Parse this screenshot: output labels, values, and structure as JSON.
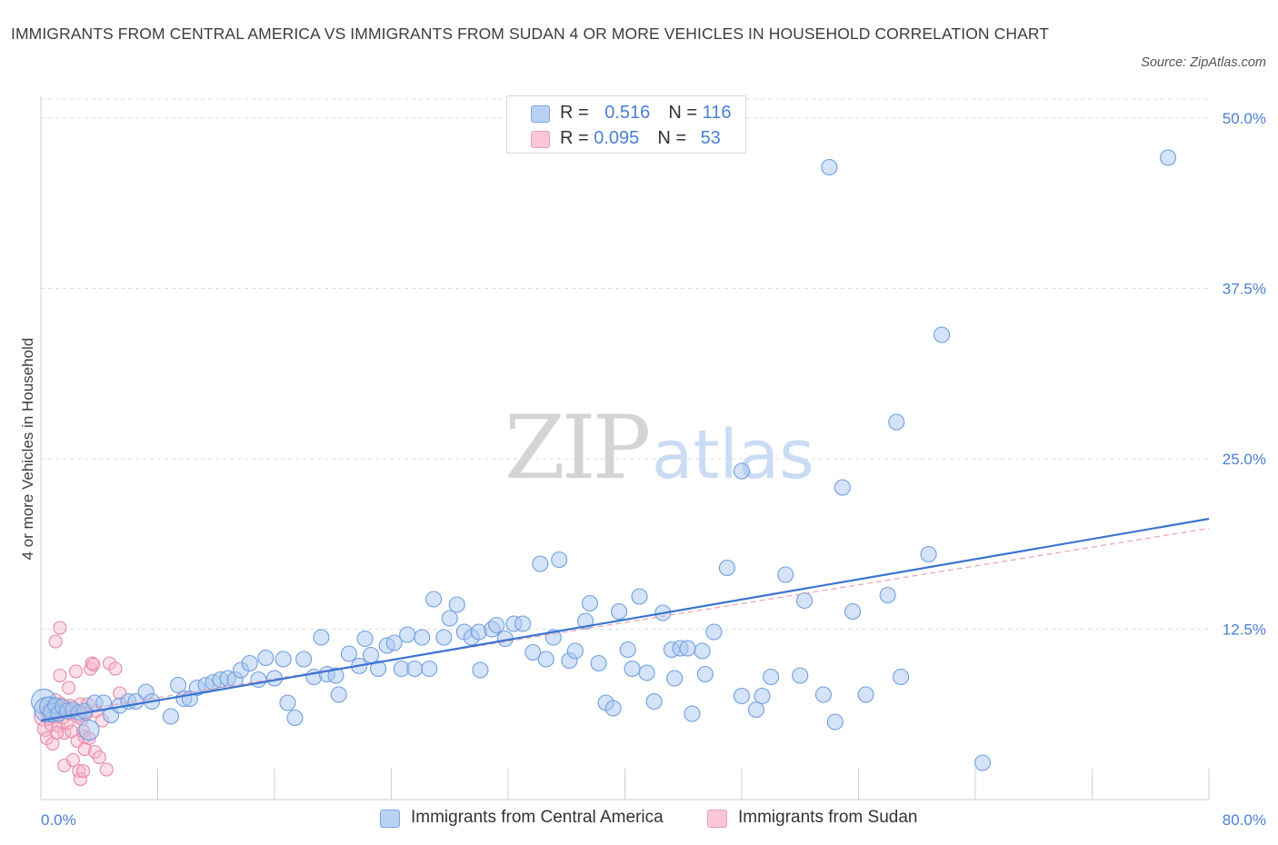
{
  "title": "IMMIGRANTS FROM CENTRAL AMERICA VS IMMIGRANTS FROM SUDAN 4 OR MORE VEHICLES IN HOUSEHOLD CORRELATION CHART",
  "source": "Source: ZipAtlas.com",
  "watermark": {
    "zip": "ZIP",
    "atlas": "atlas"
  },
  "legend": {
    "r_label": "R =",
    "n_label": "N =",
    "series1": {
      "r": "0.516",
      "n": "116"
    },
    "series2": {
      "r": "0.095",
      "n": "53"
    }
  },
  "bottom_legend": {
    "series1": "Immigrants from Central America",
    "series2": "Immigrants from Sudan"
  },
  "colors": {
    "blue_fill": "#a9c8f0",
    "blue_stroke": "#6f9fe0",
    "blue_line": "#3a74d0",
    "pink_fill": "#f6b9cb",
    "pink_stroke": "#e88aa8",
    "pink_line": "#e8a0b4",
    "axis_label": "#4a7fd4",
    "grid": "#dddddd"
  },
  "chart_data": {
    "type": "scatter",
    "title": "IMMIGRANTS FROM CENTRAL AMERICA VS IMMIGRANTS FROM SUDAN 4 OR MORE VEHICLES IN HOUSEHOLD CORRELATION CHART",
    "xlabel": "",
    "ylabel": "4 or more Vehicles in Household",
    "xlim": [
      0,
      80
    ],
    "ylim": [
      0,
      52
    ],
    "x_tick_labels": [
      {
        "value": 0,
        "label": "0.0%"
      },
      {
        "value": 80,
        "label": "80.0%"
      }
    ],
    "y_ticks": [
      {
        "value": 12.5,
        "label": "12.5%"
      },
      {
        "value": 25,
        "label": "25.0%"
      },
      {
        "value": 37.5,
        "label": "37.5%"
      },
      {
        "value": 50,
        "label": "50.0%"
      }
    ],
    "x_minor_ticks": [
      8,
      16,
      24,
      32,
      40,
      48,
      56,
      64,
      72,
      80
    ],
    "grid": true,
    "legend_position": "top-center",
    "series": [
      {
        "name": "Immigrants from Central America",
        "color": "blue",
        "R": 0.516,
        "N": 116,
        "trend": {
          "x": [
            0,
            80
          ],
          "y": [
            5.8,
            20.6
          ]
        },
        "points": [
          [
            0.2,
            7.2,
            1.6
          ],
          [
            0.4,
            6.6,
            1.6
          ],
          [
            0.6,
            6.8,
            1.3
          ],
          [
            0.8,
            6.4,
            1.2
          ],
          [
            1.0,
            6.9,
            1.0
          ],
          [
            1.2,
            6.3,
            1.0
          ],
          [
            1.5,
            6.8,
            1.0
          ],
          [
            1.8,
            6.5,
            1.0
          ],
          [
            2.2,
            6.6,
            1.0
          ],
          [
            2.6,
            6.4,
            1.0
          ],
          [
            3.0,
            6.5,
            1.0
          ],
          [
            3.3,
            5.1,
            1.3
          ],
          [
            3.7,
            7.1,
            1.0
          ],
          [
            4.3,
            7.1,
            1.0
          ],
          [
            4.8,
            6.2,
            1.0
          ],
          [
            5.4,
            6.9,
            1.0
          ],
          [
            6.0,
            7.2,
            1.0
          ],
          [
            6.5,
            7.2,
            1.0
          ],
          [
            7.2,
            7.9,
            1.0
          ],
          [
            7.6,
            7.2,
            1.0
          ],
          [
            8.9,
            6.1,
            1.0
          ],
          [
            9.4,
            8.4,
            1.0
          ],
          [
            9.8,
            7.4,
            1.0
          ],
          [
            10.2,
            7.4,
            1.0
          ],
          [
            10.7,
            8.2,
            1.0
          ],
          [
            11.3,
            8.4,
            1.0
          ],
          [
            11.8,
            8.6,
            1.0
          ],
          [
            12.3,
            8.8,
            1.0
          ],
          [
            12.8,
            8.9,
            1.0
          ],
          [
            13.3,
            8.8,
            1.0
          ],
          [
            13.7,
            9.5,
            1.0
          ],
          [
            14.3,
            10.0,
            1.0
          ],
          [
            14.9,
            8.8,
            1.0
          ],
          [
            15.4,
            10.4,
            1.0
          ],
          [
            16.0,
            8.9,
            1.0
          ],
          [
            16.6,
            10.3,
            1.0
          ],
          [
            16.9,
            7.1,
            1.0
          ],
          [
            17.4,
            6.0,
            1.0
          ],
          [
            18.0,
            10.3,
            1.0
          ],
          [
            18.7,
            9.0,
            1.0
          ],
          [
            19.2,
            11.9,
            1.0
          ],
          [
            19.6,
            9.2,
            1.0
          ],
          [
            20.2,
            9.1,
            1.0
          ],
          [
            20.4,
            7.7,
            1.0
          ],
          [
            21.1,
            10.7,
            1.0
          ],
          [
            21.8,
            9.8,
            1.0
          ],
          [
            22.2,
            11.8,
            1.0
          ],
          [
            22.6,
            10.6,
            1.0
          ],
          [
            23.1,
            9.6,
            1.0
          ],
          [
            23.7,
            11.3,
            1.0
          ],
          [
            24.2,
            11.5,
            1.0
          ],
          [
            24.7,
            9.6,
            1.0
          ],
          [
            25.1,
            12.1,
            1.0
          ],
          [
            25.6,
            9.6,
            1.0
          ],
          [
            26.1,
            11.9,
            1.0
          ],
          [
            26.6,
            9.6,
            1.0
          ],
          [
            26.9,
            14.7,
            1.0
          ],
          [
            27.6,
            11.9,
            1.0
          ],
          [
            28.0,
            13.3,
            1.0
          ],
          [
            28.5,
            14.3,
            1.0
          ],
          [
            29.0,
            12.3,
            1.0
          ],
          [
            29.5,
            11.9,
            1.0
          ],
          [
            30.0,
            12.3,
            1.0
          ],
          [
            30.1,
            9.5,
            1.0
          ],
          [
            30.9,
            12.5,
            1.0
          ],
          [
            31.2,
            12.8,
            1.0
          ],
          [
            31.8,
            11.8,
            1.0
          ],
          [
            32.4,
            12.9,
            1.0
          ],
          [
            33.0,
            12.9,
            1.0
          ],
          [
            33.7,
            10.8,
            1.0
          ],
          [
            34.2,
            17.3,
            1.0
          ],
          [
            34.6,
            10.3,
            1.0
          ],
          [
            35.1,
            11.9,
            1.0
          ],
          [
            35.5,
            17.6,
            1.0
          ],
          [
            36.2,
            10.2,
            1.0
          ],
          [
            36.6,
            10.9,
            1.0
          ],
          [
            37.3,
            13.1,
            1.0
          ],
          [
            37.6,
            14.4,
            1.0
          ],
          [
            38.2,
            10.0,
            1.0
          ],
          [
            38.7,
            7.1,
            1.0
          ],
          [
            39.2,
            6.7,
            1.0
          ],
          [
            39.6,
            13.8,
            1.0
          ],
          [
            40.2,
            11.0,
            1.0
          ],
          [
            40.5,
            9.6,
            1.0
          ],
          [
            41.0,
            14.9,
            1.0
          ],
          [
            41.5,
            9.3,
            1.0
          ],
          [
            42.0,
            7.2,
            1.0
          ],
          [
            42.6,
            13.7,
            1.0
          ],
          [
            43.2,
            11.0,
            1.0
          ],
          [
            43.4,
            8.9,
            1.0
          ],
          [
            43.8,
            11.1,
            1.0
          ],
          [
            44.3,
            11.1,
            1.0
          ],
          [
            44.6,
            6.3,
            1.0
          ],
          [
            45.3,
            10.9,
            1.0
          ],
          [
            45.5,
            9.2,
            1.0
          ],
          [
            46.1,
            12.3,
            1.0
          ],
          [
            47.0,
            17.0,
            1.0
          ],
          [
            48.0,
            7.6,
            1.0
          ],
          [
            49.0,
            6.6,
            1.0
          ],
          [
            49.4,
            7.6,
            1.0
          ],
          [
            50.0,
            9.0,
            1.0
          ],
          [
            51.0,
            16.5,
            1.0
          ],
          [
            52.0,
            9.1,
            1.0
          ],
          [
            52.3,
            14.6,
            1.0
          ],
          [
            53.6,
            7.7,
            1.0
          ],
          [
            54.0,
            46.4,
            1.0
          ],
          [
            54.4,
            5.7,
            1.0
          ],
          [
            54.9,
            22.9,
            1.0
          ],
          [
            55.6,
            13.8,
            1.0
          ],
          [
            56.5,
            7.7,
            1.0
          ],
          [
            58.0,
            15.0,
            1.0
          ],
          [
            58.6,
            27.7,
            1.0
          ],
          [
            58.9,
            9.0,
            1.0
          ],
          [
            60.8,
            18.0,
            1.0
          ],
          [
            61.7,
            34.1,
            1.0
          ],
          [
            64.5,
            2.7,
            1.0
          ],
          [
            77.2,
            47.1,
            1.0
          ],
          [
            48.0,
            24.1,
            1.0
          ]
        ]
      },
      {
        "name": "Immigrants from Sudan",
        "color": "pink",
        "R": 0.095,
        "N": 53,
        "trend": {
          "x": [
            0,
            80
          ],
          "y": [
            5.9,
            19.9
          ]
        },
        "points": [
          [
            0.2,
            6.1,
            1.5
          ],
          [
            0.3,
            5.2,
            1.2
          ],
          [
            0.4,
            4.5,
            1.0
          ],
          [
            0.5,
            6.4,
            1.2
          ],
          [
            0.6,
            5.9,
            1.0
          ],
          [
            0.7,
            5.5,
            1.0
          ],
          [
            0.8,
            4.1,
            1.0
          ],
          [
            0.9,
            6.2,
            1.2
          ],
          [
            1.0,
            11.6,
            1.0
          ],
          [
            1.0,
            7.3,
            1.0
          ],
          [
            1.1,
            6.6,
            1.0
          ],
          [
            1.2,
            5.4,
            1.0
          ],
          [
            1.3,
            12.6,
            1.0
          ],
          [
            1.3,
            9.1,
            1.0
          ],
          [
            1.4,
            7.0,
            1.0
          ],
          [
            1.5,
            6.0,
            1.0
          ],
          [
            1.6,
            4.9,
            1.0
          ],
          [
            1.6,
            2.5,
            1.0
          ],
          [
            1.7,
            6.8,
            1.0
          ],
          [
            1.8,
            5.6,
            1.0
          ],
          [
            1.9,
            8.2,
            1.0
          ],
          [
            2.0,
            6.3,
            1.0
          ],
          [
            2.1,
            5.0,
            1.0
          ],
          [
            2.2,
            2.9,
            1.0
          ],
          [
            2.3,
            6.6,
            1.0
          ],
          [
            2.4,
            9.4,
            1.0
          ],
          [
            2.5,
            6.1,
            1.0
          ],
          [
            2.5,
            4.3,
            1.0
          ],
          [
            2.6,
            2.1,
            1.0
          ],
          [
            2.7,
            1.5,
            1.0
          ],
          [
            2.7,
            7.0,
            1.0
          ],
          [
            2.8,
            5.9,
            1.0
          ],
          [
            2.9,
            2.1,
            1.0
          ],
          [
            2.9,
            5.0,
            1.0
          ],
          [
            3.0,
            4.6,
            1.0
          ],
          [
            3.0,
            3.7,
            1.0
          ],
          [
            3.1,
            6.3,
            1.0
          ],
          [
            3.2,
            7.0,
            1.0
          ],
          [
            3.3,
            4.5,
            1.0
          ],
          [
            3.4,
            9.6,
            1.0
          ],
          [
            3.5,
            10.0,
            1.0
          ],
          [
            3.6,
            9.9,
            1.0
          ],
          [
            3.7,
            3.5,
            1.0
          ],
          [
            3.8,
            6.5,
            1.0
          ],
          [
            4.0,
            3.1,
            1.0
          ],
          [
            4.2,
            5.8,
            1.0
          ],
          [
            4.5,
            2.2,
            1.0
          ],
          [
            4.7,
            10.0,
            1.0
          ],
          [
            5.1,
            9.6,
            1.0
          ],
          [
            5.4,
            7.8,
            1.0
          ],
          [
            1.1,
            4.9,
            1.0
          ],
          [
            0.6,
            6.8,
            1.0
          ],
          [
            2.0,
            6.9,
            1.0
          ]
        ]
      }
    ]
  }
}
